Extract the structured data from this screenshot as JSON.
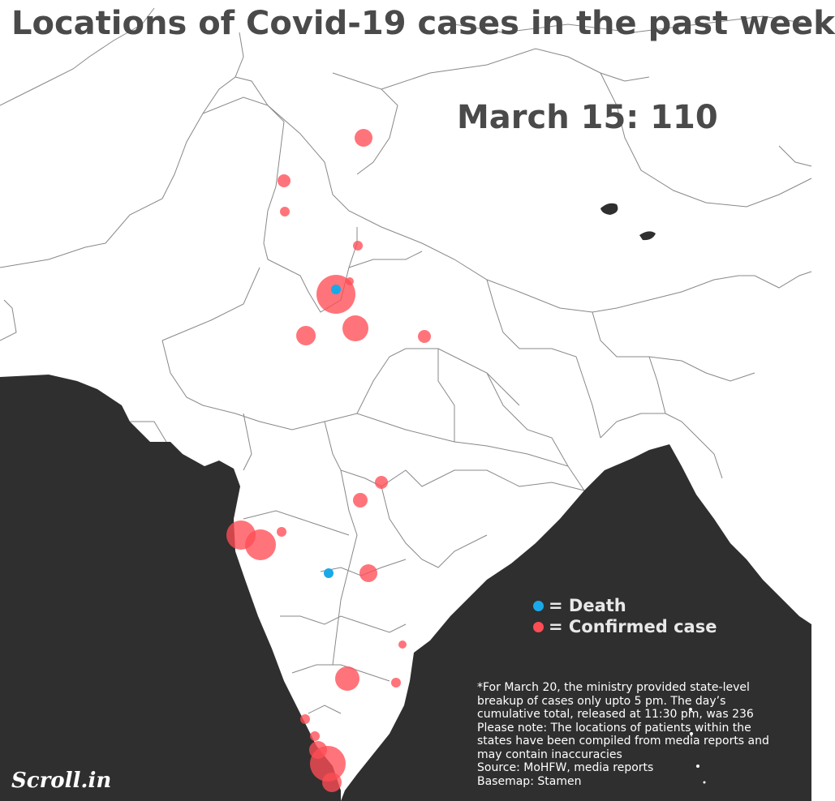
{
  "title": "Locations of Covid-19 cases in the past week",
  "date_label": "March 15: 110",
  "colors": {
    "death": "#1aa9e8",
    "confirmed": "#ff4d55",
    "sea": "#2f2f2f",
    "land": "#ffffff",
    "border": "#888888"
  },
  "legend": {
    "death_label": "= Death",
    "confirmed_label": "= Confirmed case"
  },
  "notes": [
    "*For March 20, the ministry provided state-level",
    "breakup of cases only upto 5 pm. The day’s",
    "cumulative total, released at 11:30 pm, was 236",
    "Please note: The locations of patients within the",
    "states have been compiled from media reports and",
    "may contain inaccuracies",
    "Source: MoHFW, media reports",
    "Basemap: Stamen"
  ],
  "logo": "Scroll.in"
}
